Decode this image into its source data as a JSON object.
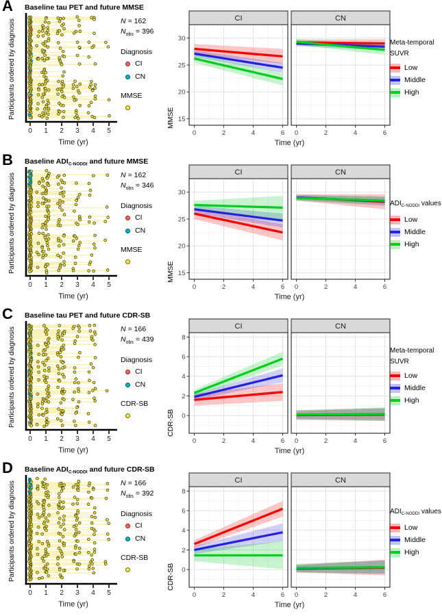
{
  "colors": {
    "ci_fill": "#ef685e",
    "ci_stroke": "#8f261d",
    "cn_fill": "#00b6c9",
    "cn_stroke": "#015f68",
    "outcome_fill": "#ffe93c",
    "outcome_stroke": "#6f6a15",
    "spaghetti_line": "#f3e87f",
    "spaghetti_point_fill": "#efe13c",
    "spaghetti_point_stroke": "#4a4512",
    "low": "#f60000",
    "middle": "#2323de",
    "high": "#00cd1e",
    "facet_strip_bg": "#d9d9d9",
    "panel_border": "#333333",
    "grid_major": "#e2e2e2",
    "grid_minor": "#f1f1f1"
  },
  "panels": [
    {
      "letter": "A",
      "title": {
        "pre": "Baseline tau PET and future MMSE",
        "sub": "",
        "post": ""
      },
      "left": {
        "ylabel": "Participants ordered by diagnosis",
        "xlabel": "Time (yr)",
        "xticks": [
          "0",
          "1",
          "2",
          "3",
          "4",
          "5"
        ],
        "stats": {
          "n": "N",
          "n_eq": "= 162",
          "nobs": "N",
          "nobs_sub": "obs",
          "nobs_eq": "= 396"
        },
        "diagnosis_title": "Diagnosis",
        "diagnosis_items": [
          {
            "label": "CI"
          },
          {
            "label": "CN"
          }
        ],
        "outcome_label": "MMSE",
        "spaghetti": {
          "seed": 11,
          "rows": 86,
          "cn_top_cluster": false
        }
      }
    },
    {
      "letter": "B",
      "title": {
        "pre": "Baseline ADI",
        "sub": "C-NODDI",
        "post": " and future MMSE"
      },
      "left": {
        "ylabel": "Participants ordered by diagnosis",
        "xlabel": "Time (yr)",
        "xticks": [
          "0",
          "1",
          "2",
          "3",
          "4",
          "5"
        ],
        "stats": {
          "n": "N",
          "n_eq": "= 162",
          "nobs": "N",
          "nobs_sub": "obs",
          "nobs_eq": "= 346"
        },
        "diagnosis_title": "Diagnosis",
        "diagnosis_items": [
          {
            "label": "CI"
          },
          {
            "label": "CN"
          }
        ],
        "outcome_label": "MMSE",
        "spaghetti": {
          "seed": 23,
          "rows": 86,
          "cn_top_cluster": true
        }
      }
    },
    {
      "letter": "C",
      "title": {
        "pre": "Baseline tau PET and future CDR-SB",
        "sub": "",
        "post": ""
      },
      "left": {
        "ylabel": "Participants ordered by diagnosis",
        "xlabel": "Time (yr)",
        "xticks": [
          "0",
          "1",
          "2",
          "3",
          "4",
          "5"
        ],
        "stats": {
          "n": "N",
          "n_eq": "= 166",
          "nobs": "N",
          "nobs_sub": "obs",
          "nobs_eq": "= 439"
        },
        "diagnosis_title": "Diagnosis",
        "diagnosis_items": [
          {
            "label": "CI"
          },
          {
            "label": "CN"
          }
        ],
        "outcome_label": "CDR-SB",
        "spaghetti": {
          "seed": 35,
          "rows": 90,
          "cn_top_cluster": false
        }
      }
    },
    {
      "letter": "D",
      "title": {
        "pre": "Baseline ADI",
        "sub": "C-NODDI",
        "post": " and future CDR-SB"
      },
      "left": {
        "ylabel": "Participants ordered by diagnosis",
        "xlabel": "Time (yr)",
        "xticks": [
          "0",
          "1",
          "2",
          "3",
          "4",
          "5"
        ],
        "stats": {
          "n": "N",
          "n_eq": "= 166",
          "nobs": "N",
          "nobs_sub": "obs",
          "nobs_eq": "= 392"
        },
        "diagnosis_title": "Diagnosis",
        "diagnosis_items": [
          {
            "label": "CI"
          },
          {
            "label": "CN"
          }
        ],
        "outcome_label": "CDR-SB",
        "spaghetti": {
          "seed": 51,
          "rows": 90,
          "cn_top_cluster": true
        }
      }
    }
  ],
  "chart_data": [
    {
      "type": "line",
      "title": "Baseline tau PET and future MMSE",
      "facet_labels": [
        "CI",
        "CN"
      ],
      "x": [
        0,
        6
      ],
      "xlim": [
        -0.35,
        6.35
      ],
      "xticks": [
        0,
        2,
        4,
        6
      ],
      "xlabel": "Time (yr)",
      "ylabel": "MMSE",
      "yticks": [
        15,
        20,
        25,
        30
      ],
      "ylim": [
        13.8,
        32.5
      ],
      "grid": true,
      "legend_position": "right",
      "legend": {
        "title_line1": "Meta-temporal",
        "title_line1_sub": "",
        "title_line1_post": "",
        "title_line2": "SUVR",
        "items": [
          {
            "label": "Low",
            "level": "low"
          },
          {
            "label": "Middle",
            "level": "middle"
          },
          {
            "label": "High",
            "level": "high"
          }
        ]
      },
      "series": [
        {
          "facet": "CI",
          "name": "Low",
          "level": "low",
          "y": [
            28.0,
            26.6
          ],
          "lo": [
            27.1,
            25.2
          ],
          "hi": [
            28.9,
            28.0
          ]
        },
        {
          "facet": "CI",
          "name": "Middle",
          "level": "middle",
          "y": [
            27.1,
            24.5
          ],
          "lo": [
            26.5,
            23.6
          ],
          "hi": [
            27.7,
            25.4
          ]
        },
        {
          "facet": "CI",
          "name": "High",
          "level": "high",
          "y": [
            26.2,
            22.4
          ],
          "lo": [
            25.4,
            21.2
          ],
          "hi": [
            27.0,
            23.6
          ]
        },
        {
          "facet": "CN",
          "name": "Low",
          "level": "low",
          "y": [
            29.2,
            29.0
          ],
          "lo": [
            28.7,
            28.2
          ],
          "hi": [
            29.7,
            29.8
          ]
        },
        {
          "facet": "CN",
          "name": "Middle",
          "level": "middle",
          "y": [
            29.0,
            28.4
          ],
          "lo": [
            28.5,
            27.7
          ],
          "hi": [
            29.5,
            29.1
          ]
        },
        {
          "facet": "CN",
          "name": "High",
          "level": "high",
          "y": [
            29.3,
            27.8
          ],
          "lo": [
            28.7,
            26.9
          ],
          "hi": [
            29.9,
            28.7
          ]
        }
      ]
    },
    {
      "type": "line",
      "title": "Baseline ADI C-NODDI and future MMSE",
      "facet_labels": [
        "CI",
        "CN"
      ],
      "x": [
        0,
        6
      ],
      "xlim": [
        -0.35,
        6.35
      ],
      "xticks": [
        0,
        2,
        4,
        6
      ],
      "xlabel": "Time (yr)",
      "ylabel": "MMSE",
      "yticks": [
        15,
        20,
        25,
        30
      ],
      "ylim": [
        13.8,
        32.5
      ],
      "grid": true,
      "legend_position": "right",
      "legend": {
        "title_line1": "ADI",
        "title_line1_sub": "C-NODDI",
        "title_line1_post": " values",
        "title_line2": "",
        "items": [
          {
            "label": "Low",
            "level": "low"
          },
          {
            "label": "Middle",
            "level": "middle"
          },
          {
            "label": "High",
            "level": "high"
          }
        ]
      },
      "series": [
        {
          "facet": "CI",
          "name": "Low",
          "level": "low",
          "y": [
            26.0,
            22.5
          ],
          "lo": [
            25.0,
            21.0
          ],
          "hi": [
            27.0,
            24.0
          ]
        },
        {
          "facet": "CI",
          "name": "Middle",
          "level": "middle",
          "y": [
            26.8,
            24.7
          ],
          "lo": [
            26.1,
            23.4
          ],
          "hi": [
            27.5,
            26.0
          ]
        },
        {
          "facet": "CI",
          "name": "High",
          "level": "high",
          "y": [
            27.6,
            27.1
          ],
          "lo": [
            26.8,
            24.9
          ],
          "hi": [
            28.4,
            29.3
          ]
        },
        {
          "facet": "CN",
          "name": "Low",
          "level": "low",
          "y": [
            29.0,
            28.2
          ],
          "lo": [
            28.4,
            26.8
          ],
          "hi": [
            29.6,
            29.6
          ]
        },
        {
          "facet": "CN",
          "name": "Middle",
          "level": "middle",
          "y": [
            29.0,
            28.3
          ],
          "lo": [
            28.5,
            27.5
          ],
          "hi": [
            29.5,
            29.1
          ]
        },
        {
          "facet": "CN",
          "name": "High",
          "level": "high",
          "y": [
            28.9,
            28.4
          ],
          "lo": [
            28.4,
            27.6
          ],
          "hi": [
            29.4,
            29.2
          ]
        }
      ]
    },
    {
      "type": "line",
      "title": "Baseline tau PET and future CDR-SB",
      "facet_labels": [
        "CI",
        "CN"
      ],
      "x": [
        0,
        6
      ],
      "xlim": [
        -0.35,
        6.35
      ],
      "xticks": [
        0,
        2,
        4,
        6
      ],
      "xlabel": "Time (yr)",
      "ylabel": "CDR-SB",
      "yticks": [
        0,
        2,
        4,
        6,
        8
      ],
      "ylim": [
        -1.8,
        8.45
      ],
      "grid": true,
      "legend_position": "right",
      "legend": {
        "title_line1": "Meta-temporal",
        "title_line1_sub": "",
        "title_line1_post": "",
        "title_line2": "SUVR",
        "items": [
          {
            "label": "Low",
            "level": "low"
          },
          {
            "label": "Middle",
            "level": "middle"
          },
          {
            "label": "High",
            "level": "high"
          }
        ]
      },
      "series": [
        {
          "facet": "CI",
          "name": "Low",
          "level": "low",
          "y": [
            1.6,
            2.4
          ],
          "lo": [
            1.0,
            1.5
          ],
          "hi": [
            2.2,
            3.3
          ]
        },
        {
          "facet": "CI",
          "name": "Middle",
          "level": "middle",
          "y": [
            1.9,
            4.1
          ],
          "lo": [
            1.6,
            3.4
          ],
          "hi": [
            2.2,
            4.8
          ]
        },
        {
          "facet": "CI",
          "name": "High",
          "level": "high",
          "y": [
            2.3,
            5.8
          ],
          "lo": [
            1.95,
            5.1
          ],
          "hi": [
            2.65,
            6.5
          ]
        },
        {
          "facet": "CN",
          "name": "Low",
          "level": "low",
          "y": [
            0.05,
            0.1
          ],
          "lo": [
            -0.45,
            -0.55
          ],
          "hi": [
            0.55,
            0.75
          ]
        },
        {
          "facet": "CN",
          "name": "Middle",
          "level": "middle",
          "y": [
            0.05,
            0.15
          ],
          "lo": [
            -0.35,
            -0.45
          ],
          "hi": [
            0.45,
            0.75
          ]
        },
        {
          "facet": "CN",
          "name": "High",
          "level": "high",
          "y": [
            0.1,
            0.15
          ],
          "lo": [
            -0.35,
            -0.55
          ],
          "hi": [
            0.55,
            0.85
          ]
        }
      ]
    },
    {
      "type": "line",
      "title": "Baseline ADI C-NODDI and future CDR-SB",
      "facet_labels": [
        "CI",
        "CN"
      ],
      "x": [
        0,
        6
      ],
      "xlim": [
        -0.35,
        6.35
      ],
      "xticks": [
        0,
        2,
        4,
        6
      ],
      "xlabel": "Time (yr)",
      "ylabel": "CDR-SB",
      "yticks": [
        0,
        2,
        4,
        6,
        8
      ],
      "ylim": [
        -1.8,
        8.45
      ],
      "grid": true,
      "legend_position": "right",
      "legend": {
        "title_line1": "ADI",
        "title_line1_sub": "C-NODDI",
        "title_line1_post": " values",
        "title_line2": "",
        "items": [
          {
            "label": "Low",
            "level": "low"
          },
          {
            "label": "Middle",
            "level": "middle"
          },
          {
            "label": "High",
            "level": "high"
          }
        ]
      },
      "series": [
        {
          "facet": "CI",
          "name": "Low",
          "level": "low",
          "y": [
            2.6,
            6.2
          ],
          "lo": [
            2.2,
            5.4
          ],
          "hi": [
            3.0,
            7.0
          ]
        },
        {
          "facet": "CI",
          "name": "Middle",
          "level": "middle",
          "y": [
            2.0,
            3.8
          ],
          "lo": [
            1.6,
            2.9
          ],
          "hi": [
            2.4,
            4.7
          ]
        },
        {
          "facet": "CI",
          "name": "High",
          "level": "high",
          "y": [
            1.45,
            1.45
          ],
          "lo": [
            0.85,
            0.05
          ],
          "hi": [
            2.05,
            2.9
          ]
        },
        {
          "facet": "CN",
          "name": "Low",
          "level": "low",
          "y": [
            0.1,
            0.2
          ],
          "lo": [
            -0.3,
            -0.6
          ],
          "hi": [
            0.5,
            1.0
          ]
        },
        {
          "facet": "CN",
          "name": "Middle",
          "level": "middle",
          "y": [
            0.1,
            0.25
          ],
          "lo": [
            -0.25,
            -0.45
          ],
          "hi": [
            0.45,
            0.95
          ]
        },
        {
          "facet": "CN",
          "name": "High",
          "level": "high",
          "y": [
            0.15,
            0.25
          ],
          "lo": [
            -0.3,
            -0.4
          ],
          "hi": [
            0.6,
            0.9
          ]
        }
      ]
    }
  ]
}
